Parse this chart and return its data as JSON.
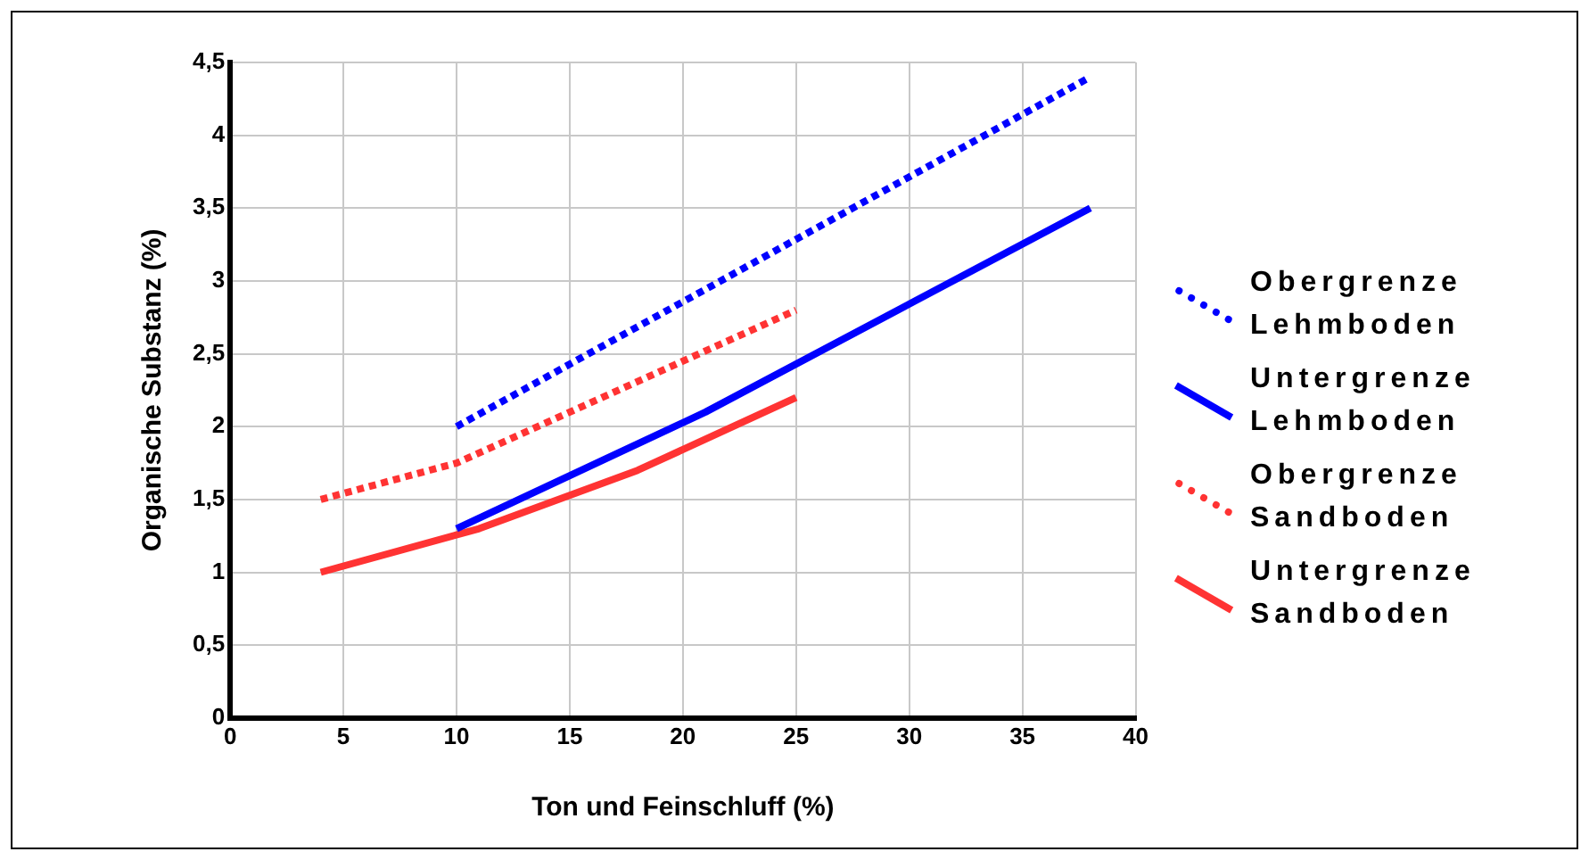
{
  "chart_data": {
    "type": "line",
    "xlabel": "Ton und Feinschluff (%)",
    "ylabel": "Organische Substanz (%)",
    "xlim": [
      0,
      40
    ],
    "xticks": [
      0,
      5,
      10,
      15,
      20,
      25,
      30,
      35,
      40
    ],
    "ylim": [
      0,
      4.5
    ],
    "yticks": [
      0,
      {
        "value": 0.5,
        "label": "0,5"
      },
      1,
      {
        "value": 1.5,
        "label": "1,5"
      },
      2,
      {
        "value": 2.5,
        "label": "2,5"
      },
      3,
      {
        "value": 3.5,
        "label": "3,5"
      },
      4,
      {
        "value": 4.5,
        "label": "4,5"
      }
    ],
    "grid": true,
    "legend": "right",
    "marker": "none",
    "series": [
      {
        "name": "Obergrenze Lehmboden",
        "color": "#0000ff",
        "line_style": "dotted",
        "x": [
          10,
          38
        ],
        "values": [
          2.0,
          4.4
        ]
      },
      {
        "name": "Untergrenze Lehmboden",
        "color": "#0000ff",
        "line_style": "solid",
        "x": [
          10,
          21,
          38
        ],
        "values": [
          1.3,
          2.1,
          3.5
        ]
      },
      {
        "name": "Obergrenze Sandboden",
        "color": "#ff3333",
        "line_style": "dotted",
        "x": [
          4,
          10,
          25
        ],
        "values": [
          1.5,
          1.75,
          2.8
        ]
      },
      {
        "name": "Untergrenze Sandboden",
        "color": "#ff3333",
        "line_style": "solid",
        "x": [
          4,
          11,
          18,
          25
        ],
        "values": [
          1.0,
          1.3,
          1.7,
          2.2
        ]
      }
    ]
  }
}
